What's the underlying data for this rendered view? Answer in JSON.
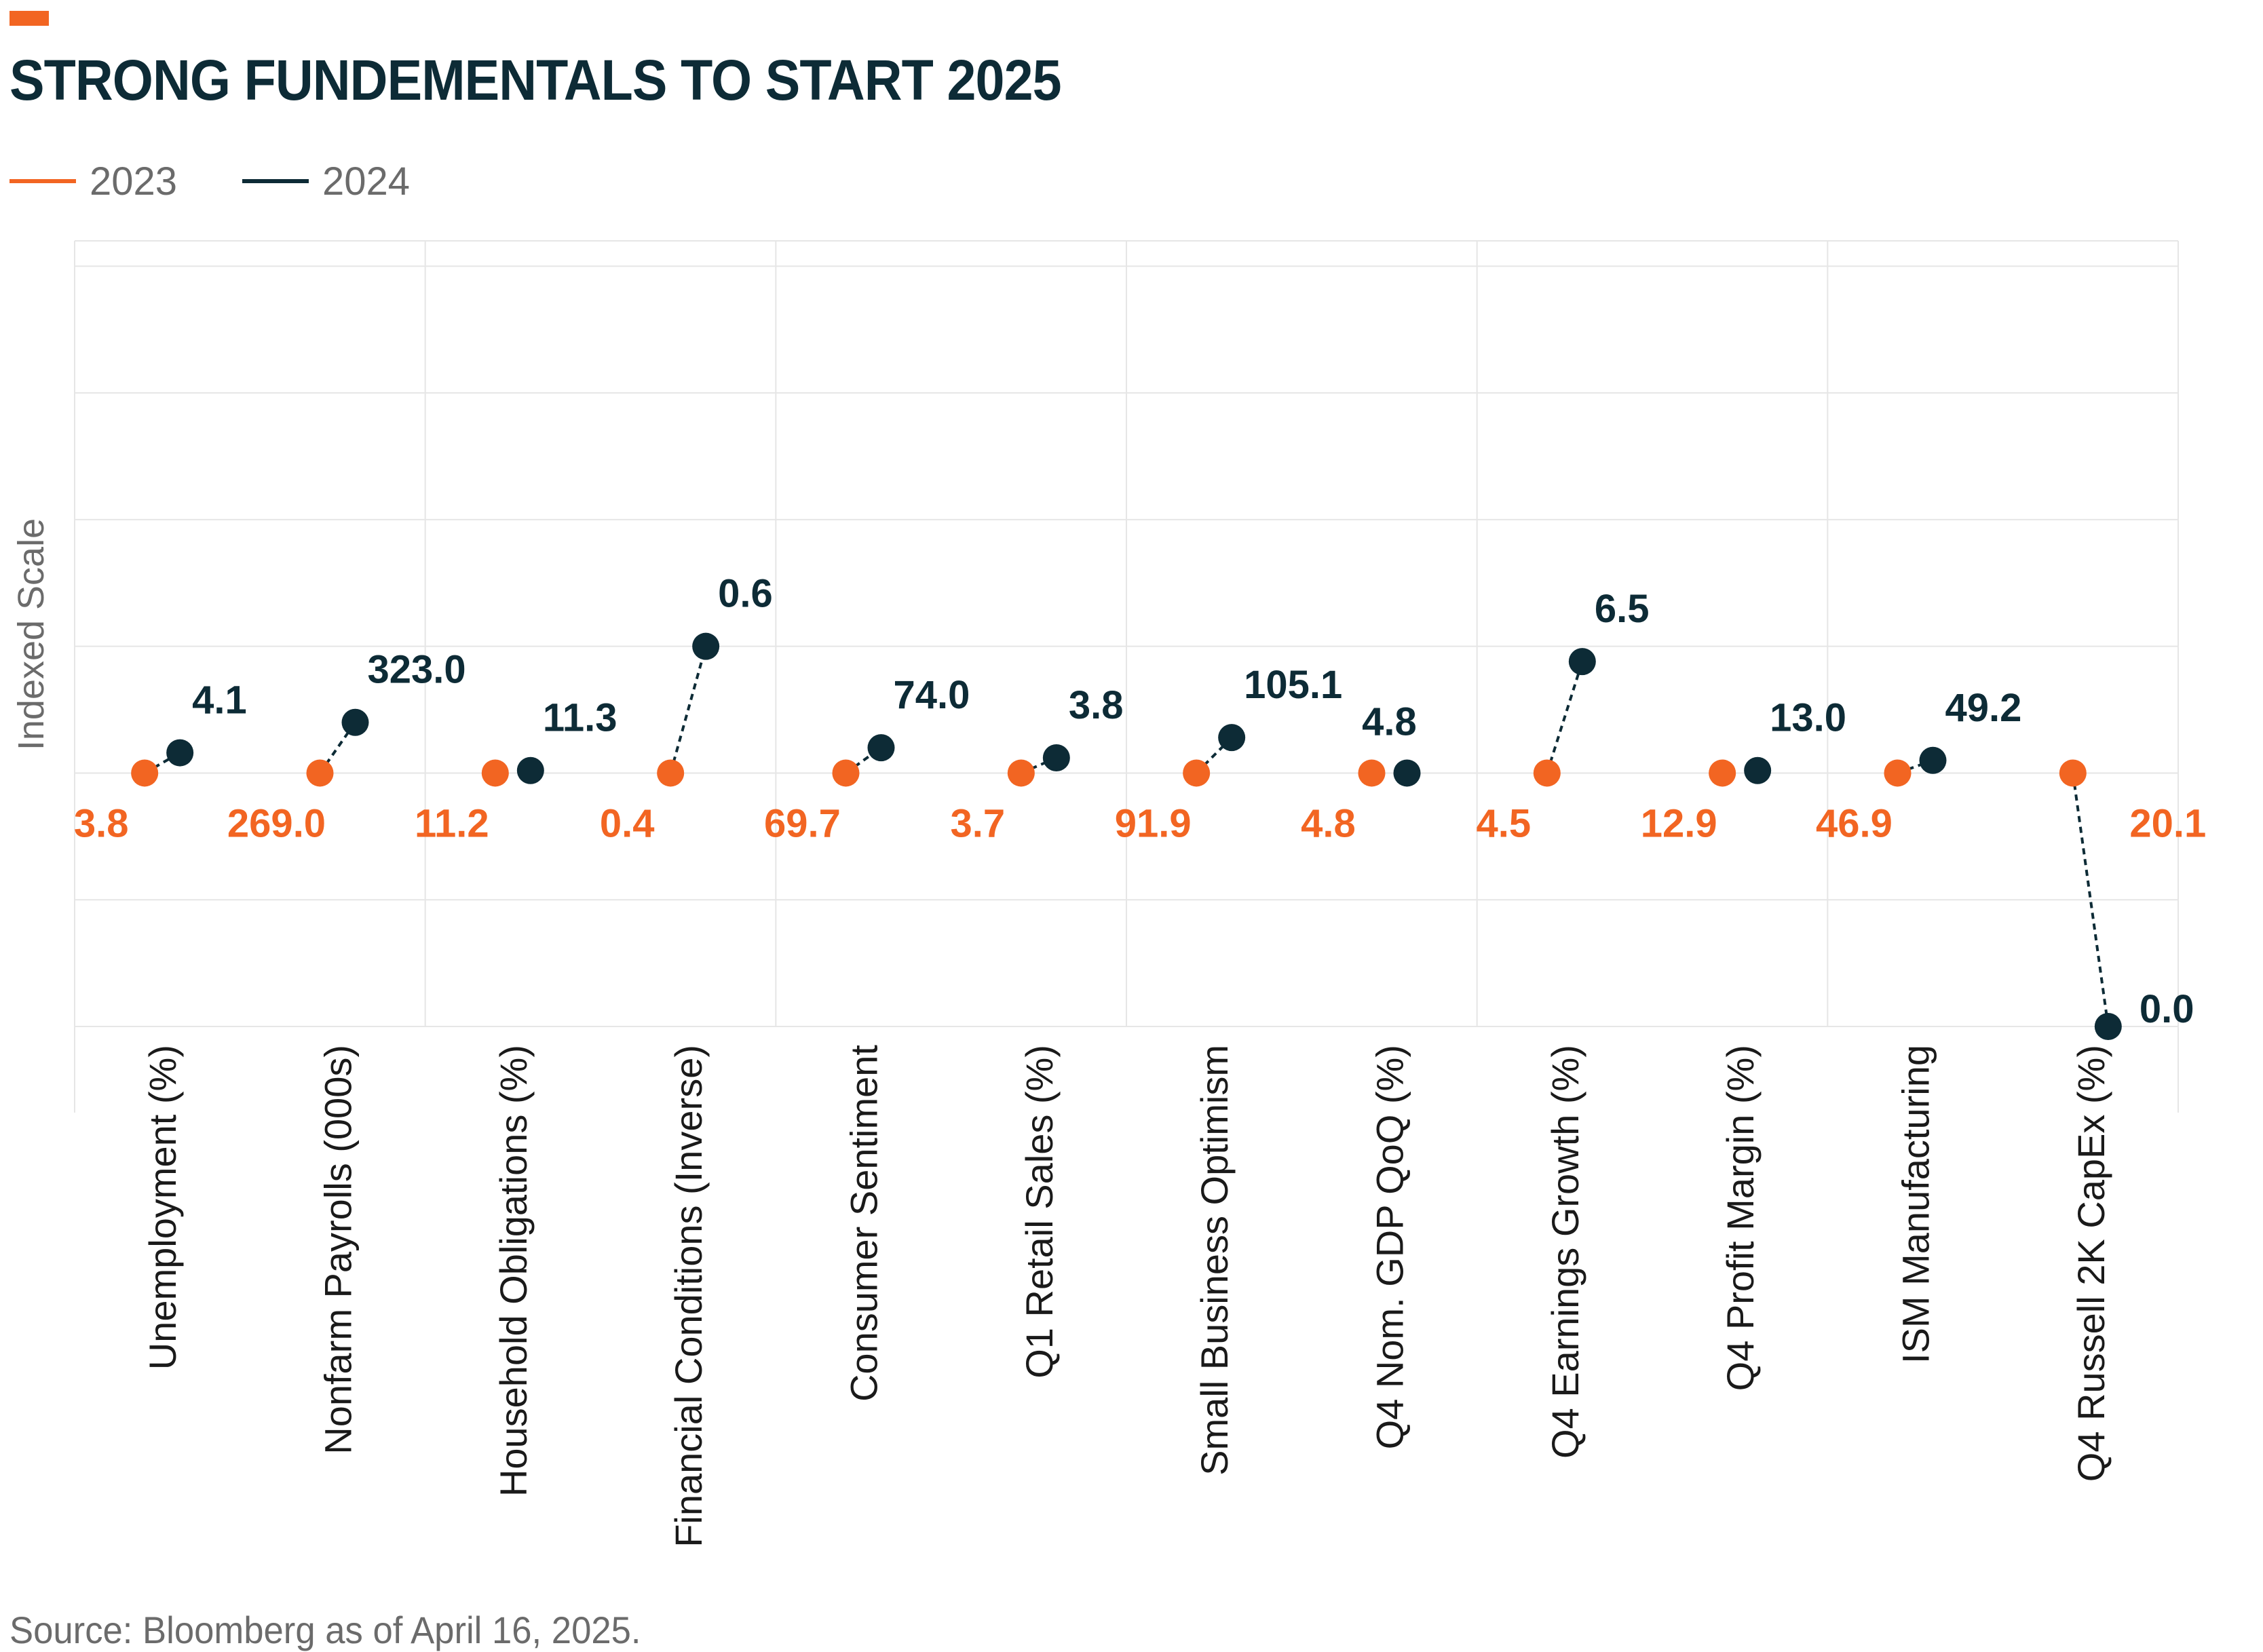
{
  "title": "STRONG FUNDEMENTALS TO START 2025",
  "source": "Source: Bloomberg as of April 16, 2025.",
  "colors": {
    "series_2023": "#f26522",
    "series_2024": "#0d2b36",
    "title": "#0d2b36",
    "muted": "#6b6b6b",
    "grid": "#e6e6e6",
    "accent": "#f26522"
  },
  "legend": [
    {
      "label": "2023",
      "color": "#f26522"
    },
    {
      "label": "2024",
      "color": "#0d2b36"
    }
  ],
  "chart_data": {
    "type": "scatter",
    "title": "STRONG FUNDEMENTALS TO START 2025",
    "ylabel": "Indexed Scale",
    "xlabel": "",
    "ylim": [
      -1.34,
      2.1
    ],
    "grid": true,
    "legend_position": "top-left",
    "categories": [
      "Unemployment (%)",
      "Nonfarm Payrolls (000s)",
      "Household Obligations (%)",
      "Financial Conditions (Inverse)",
      "Consumer Sentiment",
      "Q1 Retail Sales (%)",
      "Small Business Optimism",
      "Q4 Nom. GDP QoQ (%)",
      "Q4 Earnings Growth (%)",
      "Q4 Profit Margin (%)",
      "ISM Manufacturing",
      "Q4 Russell 2K CapEx  (%)"
    ],
    "series": [
      {
        "name": "2023",
        "labels": [
          "3.8",
          "269.0",
          "11.2",
          "0.4",
          "69.7",
          "3.7",
          "91.9",
          "4.8",
          "4.5",
          "12.9",
          "46.9",
          "20.1"
        ],
        "index": [
          0,
          0,
          0,
          0,
          0,
          0,
          0,
          0,
          0,
          0,
          0,
          0
        ]
      },
      {
        "name": "2024",
        "labels": [
          "4.1",
          "323.0",
          "11.3",
          "0.6",
          "74.0",
          "3.8",
          "105.1",
          "4.8",
          "6.5",
          "13.0",
          "49.2",
          "0.0"
        ],
        "index": [
          0.08,
          0.2,
          0.01,
          0.5,
          0.1,
          0.06,
          0.14,
          0,
          0.44,
          0.01,
          0.05,
          -1
        ]
      }
    ]
  }
}
